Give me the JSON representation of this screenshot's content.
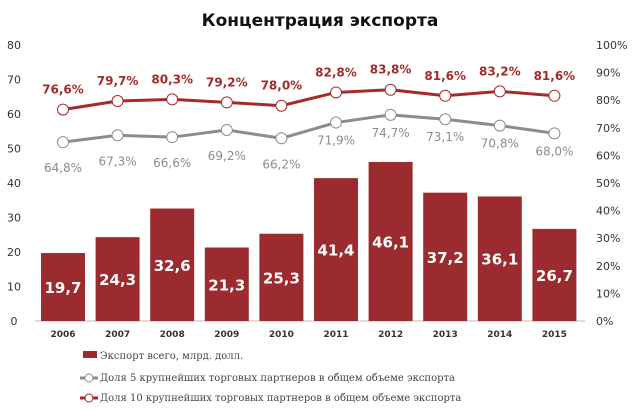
{
  "chart_data": {
    "type": "bar",
    "title": "Концентрация экспорта",
    "categories": [
      "2006",
      "2007",
      "2008",
      "2009",
      "2010",
      "2011",
      "2012",
      "2013",
      "2014",
      "2015"
    ],
    "series": [
      {
        "name": "Экспорт всего, млрд. долл.",
        "kind": "bar",
        "axis": "left",
        "color": "#9B2B2E",
        "values": [
          19.7,
          24.3,
          32.6,
          21.3,
          25.3,
          41.4,
          46.1,
          37.2,
          36.1,
          26.7
        ],
        "labels": [
          "19,7",
          "24,3",
          "32,6",
          "21,3",
          "25,3",
          "41,4",
          "46,1",
          "37,2",
          "36,1",
          "26,7"
        ]
      },
      {
        "name": "Доля 5 крупнейших торговых партнеров в общем объеме экспорта",
        "kind": "line",
        "axis": "right",
        "color": "#8C8C8C",
        "values": [
          64.8,
          67.3,
          66.6,
          69.2,
          66.2,
          71.9,
          74.7,
          73.1,
          70.8,
          68.0
        ],
        "labels": [
          "64,8%",
          "67,3%",
          "66,6%",
          "69,2%",
          "66,2%",
          "71,9%",
          "74,7%",
          "73,1%",
          "70,8%",
          "68,0%"
        ]
      },
      {
        "name": "Доля 10 крупнейших торговых партнеров в общем объеме экспорта",
        "kind": "line",
        "axis": "right",
        "color": "#A52A2A",
        "values": [
          76.6,
          79.7,
          80.3,
          79.2,
          78.0,
          82.8,
          83.8,
          81.6,
          83.2,
          81.6
        ],
        "labels": [
          "76,6%",
          "79,7%",
          "80,3%",
          "79,2%",
          "78,0%",
          "82,8%",
          "83,8%",
          "81,6%",
          "83,2%",
          "81,6%"
        ]
      }
    ],
    "ylim_left": [
      0,
      80
    ],
    "yticks_left": [
      "0",
      "10",
      "20",
      "30",
      "40",
      "50",
      "60",
      "70",
      "80"
    ],
    "ylim_right": [
      0,
      100
    ],
    "yticks_right": [
      "0%",
      "10%",
      "20%",
      "30%",
      "40%",
      "50%",
      "60%",
      "70%",
      "80%",
      "90%",
      "100%"
    ],
    "grid": false,
    "legend_position": "bottom"
  }
}
